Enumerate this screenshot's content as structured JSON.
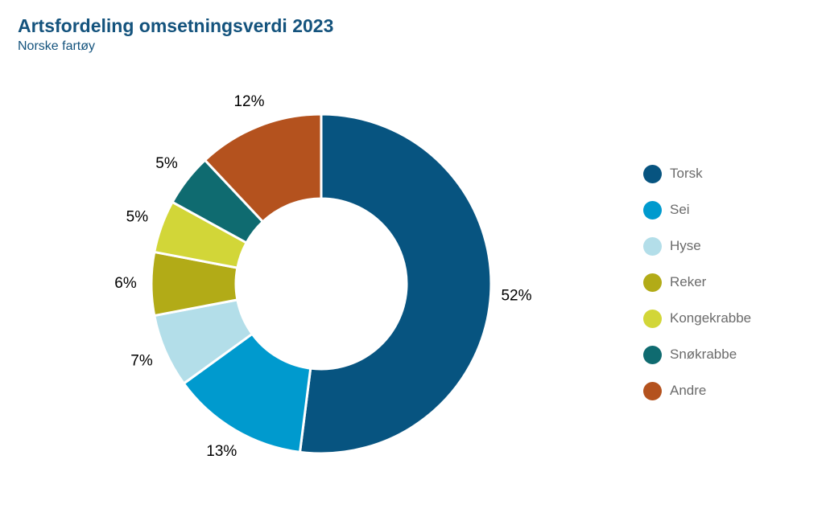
{
  "header": {
    "title": "Artsfordeling omsetningsverdi 2023",
    "subtitle": "Norske fartøy"
  },
  "colors": {
    "title_text": "#14537D",
    "legend_text": "#6B6B6B",
    "slice_label_text": "#000000",
    "background": "#FFFFFF",
    "slice_border": "#FFFFFF"
  },
  "chart_data": {
    "type": "pie",
    "variant": "donut",
    "title": "Artsfordeling omsetningsverdi 2023",
    "subtitle": "Norske fartøy",
    "unit": "%",
    "start_angle_deg": 0,
    "direction": "clockwise",
    "inner_radius_ratio": 0.5,
    "legend_position": "right",
    "total": 100,
    "series": [
      {
        "name": "Torsk",
        "value": 52,
        "label": "52%",
        "color": "#075480"
      },
      {
        "name": "Sei",
        "value": 13,
        "label": "13%",
        "color": "#009ACE"
      },
      {
        "name": "Hyse",
        "value": 7,
        "label": "7%",
        "color": "#B3DEE9"
      },
      {
        "name": "Reker",
        "value": 6,
        "label": "6%",
        "color": "#B2AB17"
      },
      {
        "name": "Kongekrabbe",
        "value": 5,
        "label": "5%",
        "color": "#D2D638"
      },
      {
        "name": "Snøkrabbe",
        "value": 5,
        "label": "5%",
        "color": "#0F6B70"
      },
      {
        "name": "Andre",
        "value": 12,
        "label": "12%",
        "color": "#B4521E"
      }
    ]
  }
}
